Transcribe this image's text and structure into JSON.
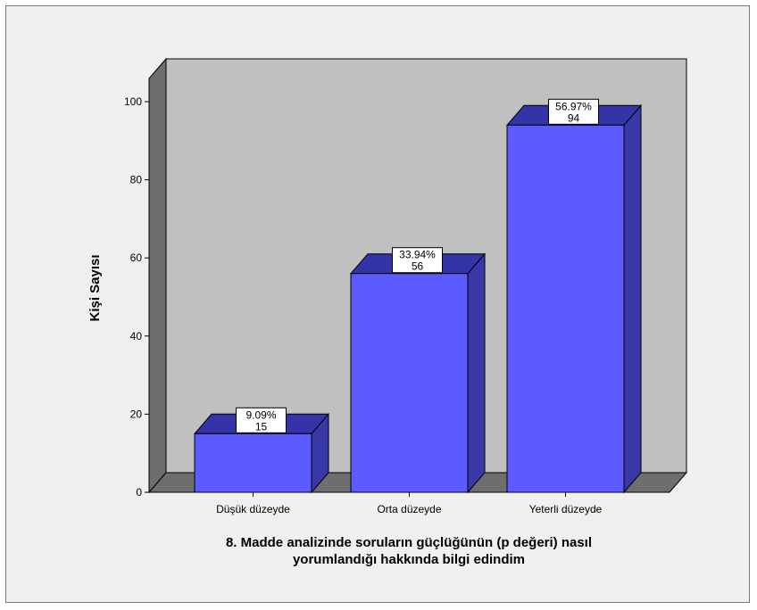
{
  "chart_data": {
    "type": "bar",
    "categories": [
      "Düşük düzeyde",
      "Orta düzeyde",
      "Yeterli düzeyde"
    ],
    "values": [
      15,
      56,
      94
    ],
    "percent_labels": [
      "9.09%",
      "33.94%",
      "56.97%"
    ],
    "count_labels": [
      "15",
      "56",
      "94"
    ],
    "xlabel_line1": "8. Madde analizinde soruların güçlüğünün (p değeri) nasıl",
    "xlabel_line2": "yorumlandığı hakkında bilgi edindim",
    "ylabel": "Kişi Sayısı",
    "ylim": [
      0,
      100
    ],
    "yticks": [
      "0",
      "20",
      "40",
      "60",
      "80",
      "100"
    ],
    "grid": false,
    "style": "3d-bar",
    "colors": {
      "bar_front": "#5b5bff",
      "bar_top": "#3434a8",
      "bar_side": "#3838a8",
      "back_wall": "#c0c0c0",
      "left_wall": "#6e6e6e",
      "floor": "#6e6e6e",
      "background": "#f0f0f0"
    }
  }
}
